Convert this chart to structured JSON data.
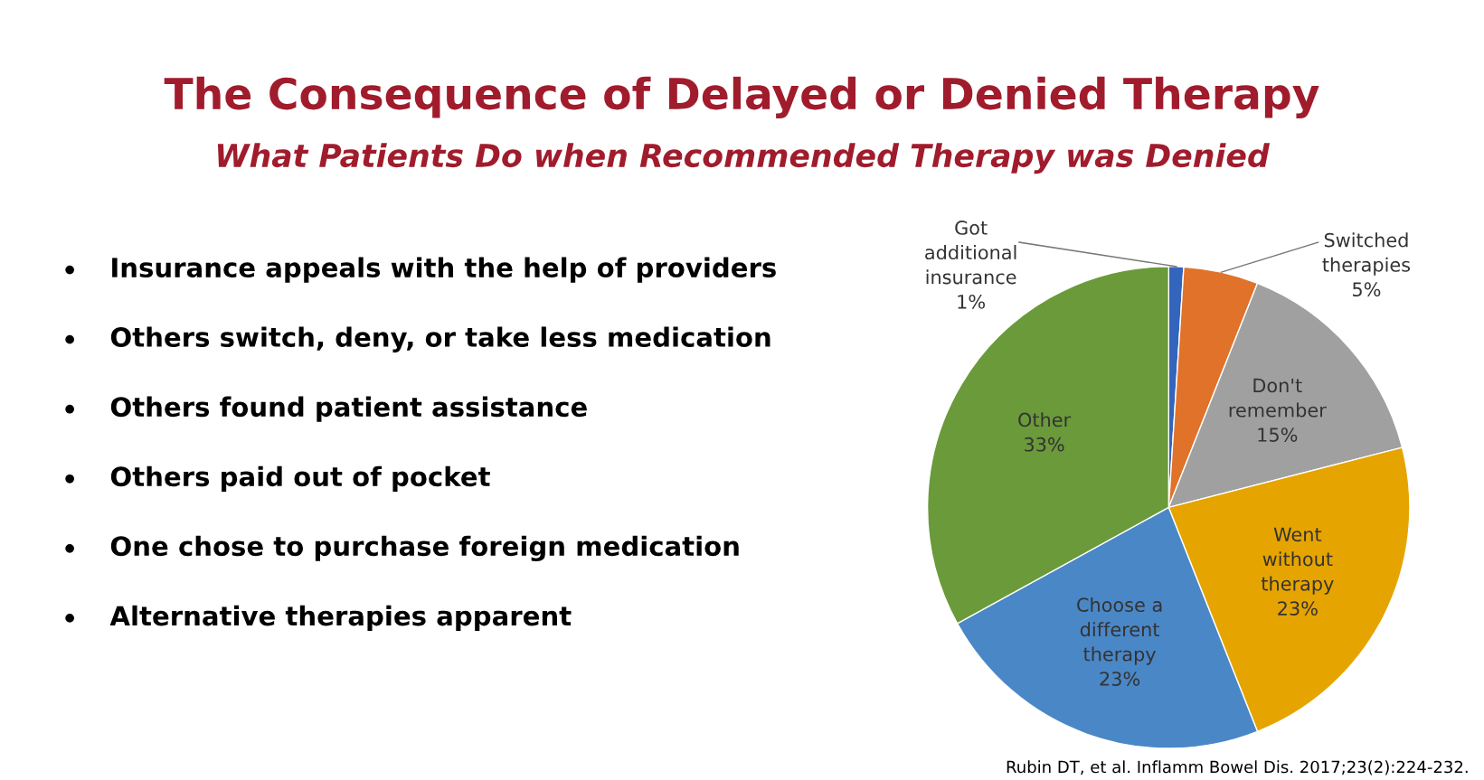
{
  "chart_data": {
    "type": "pie",
    "title": "The Consequence of Delayed or Denied Therapy",
    "subtitle": "What Patients Do when Recommended Therapy was Denied",
    "categories": [
      "Got additional insurance",
      "Switched therapies",
      "Don't remember",
      "Went without therapy",
      "Choose a different therapy",
      "Other"
    ],
    "values": [
      1,
      5,
      15,
      23,
      23,
      33
    ],
    "value_labels": [
      "1%",
      "5%",
      "15%",
      "23%",
      "23%",
      "33%"
    ],
    "colors": [
      "#3465bd",
      "#e0722a",
      "#a0a0a0",
      "#e6a400",
      "#4a87c6",
      "#6a9a3a"
    ],
    "annotations": [
      "Insurance appeals with the help of providers",
      "Others switch, deny, or take less medication",
      "Others found patient assistance",
      "Others paid out of pocket",
      "One chose to purchase foreign medication",
      "Alternative therapies apparent",
      "Rubin DT, et al. Inflamm Bowel Dis. 2017;23(2):224-232."
    ]
  }
}
